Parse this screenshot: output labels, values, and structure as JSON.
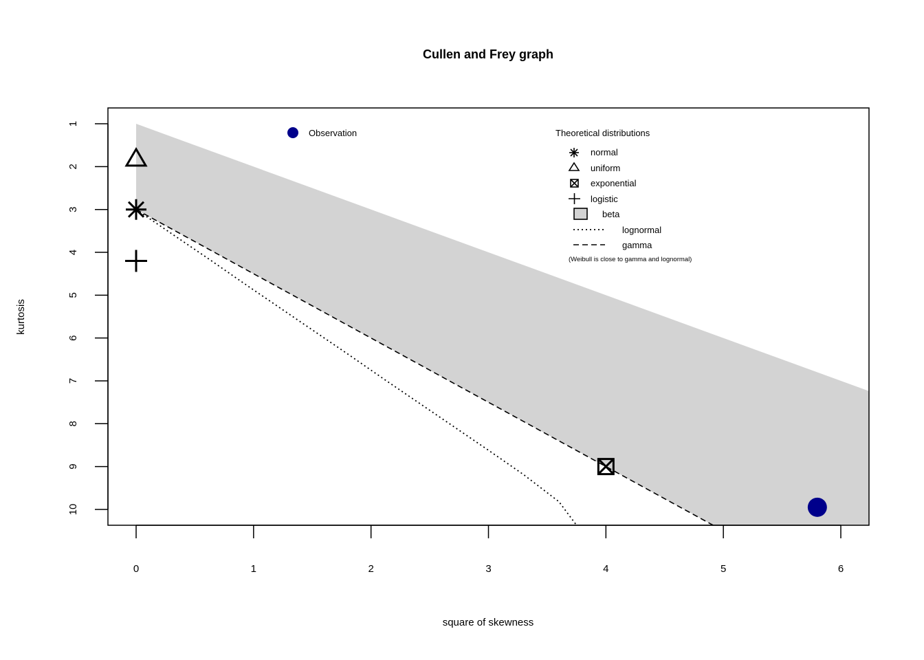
{
  "chart_data": {
    "type": "scatter",
    "title": "Cullen and Frey graph",
    "xlabel": "square of skewness",
    "ylabel": "kurtosis",
    "xlim": [
      -0.24,
      6.24
    ],
    "ylim": [
      10.37,
      0.63
    ],
    "x_ticks": [
      0,
      1,
      2,
      3,
      4,
      5,
      6
    ],
    "y_ticks": [
      1,
      2,
      3,
      4,
      5,
      6,
      7,
      8,
      9,
      10
    ],
    "y_axis_inverted": true,
    "grid": false,
    "observation": {
      "label": "Observation",
      "x": 5.8,
      "y": 9.95,
      "color": "#00008B"
    },
    "theoretical": {
      "title": "Theoretical distributions",
      "normal": {
        "label": "normal",
        "x": 0,
        "y": 3
      },
      "uniform": {
        "label": "uniform",
        "x": 0,
        "y": 1.8
      },
      "exponential": {
        "label": "exponential",
        "x": 4,
        "y": 9
      },
      "logistic": {
        "label": "logistic",
        "x": 0,
        "y": 4.2
      },
      "beta": {
        "label": "beta",
        "region_upper": [
          [
            0,
            1
          ],
          [
            6.24,
            7.24
          ]
        ],
        "fill_color": "#D3D3D3"
      },
      "lognormal": {
        "label": "lognormal",
        "curve": [
          [
            0.0,
            3.0
          ],
          [
            0.3,
            3.56
          ],
          [
            0.6,
            4.12
          ],
          [
            0.9,
            4.69
          ],
          [
            1.2,
            5.25
          ],
          [
            1.5,
            5.81
          ],
          [
            1.8,
            6.37
          ],
          [
            2.1,
            6.94
          ],
          [
            2.4,
            7.5
          ],
          [
            2.7,
            8.06
          ],
          [
            3.0,
            8.62
          ],
          [
            3.3,
            9.19
          ],
          [
            3.6,
            9.82
          ],
          [
            3.75,
            10.37
          ]
        ]
      },
      "gamma": {
        "label": "gamma",
        "curve": [
          [
            0,
            3
          ],
          [
            4,
            9
          ],
          [
            4.913,
            10.37
          ]
        ]
      },
      "note": "(Weibull is close to gamma and lognormal)"
    }
  }
}
